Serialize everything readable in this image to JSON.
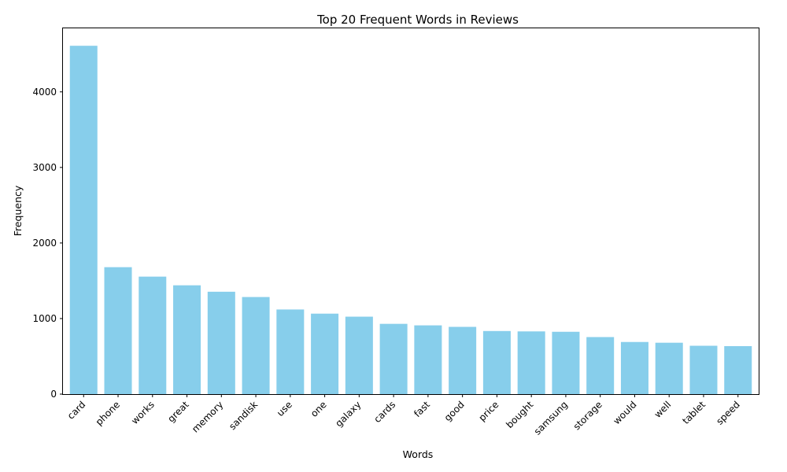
{
  "chart_data": {
    "type": "bar",
    "title": "Top 20 Frequent Words in Reviews",
    "xlabel": "Words",
    "ylabel": "Frequency",
    "categories": [
      "card",
      "phone",
      "works",
      "great",
      "memory",
      "sandisk",
      "use",
      "one",
      "galaxy",
      "cards",
      "fast",
      "good",
      "price",
      "bought",
      "samsung",
      "storage",
      "would",
      "well",
      "tablet",
      "speed"
    ],
    "values": [
      4610,
      1680,
      1555,
      1440,
      1355,
      1285,
      1120,
      1065,
      1025,
      930,
      910,
      890,
      835,
      830,
      825,
      755,
      690,
      680,
      640,
      635
    ],
    "ylim": [
      0,
      4841
    ],
    "yticks": [
      0,
      1000,
      2000,
      3000,
      4000
    ],
    "bar_color": "#87ceeb",
    "grid": false,
    "legend": "none"
  }
}
